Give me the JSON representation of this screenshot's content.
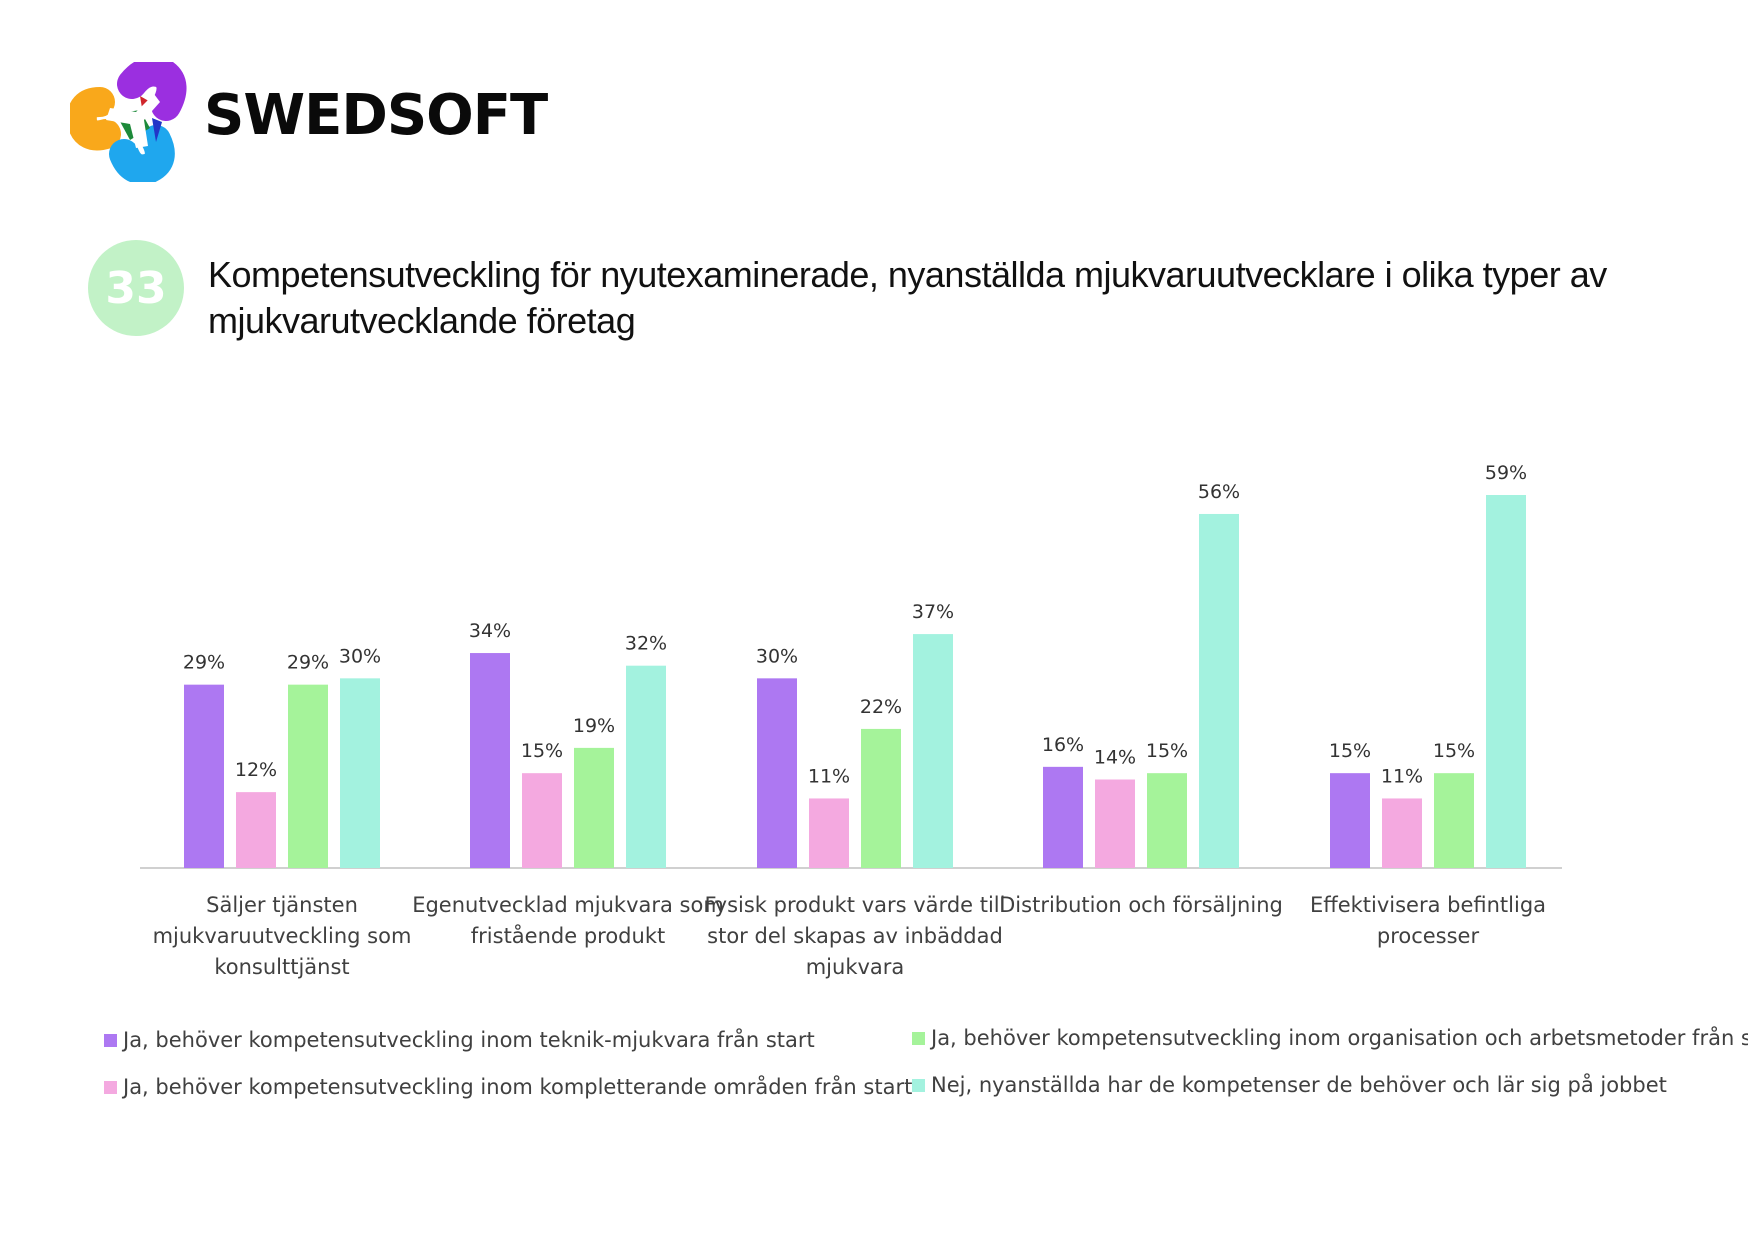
{
  "brand": {
    "name": "SWEDSOFT",
    "logo_icon": "swedsoft-logo-icon"
  },
  "figure": {
    "number": "33",
    "title": "Kompetensutveckling för nyutexaminerade, nyanställda mjukvaruutvecklare i olika typer av mjukvarutvecklande företag"
  },
  "chart_data": {
    "type": "bar",
    "categories": [
      "Säljer tjänsten mjukvaruutveckling som konsulttjänst",
      "Egenutvecklad mjukvara som fristående produkt",
      "Fysisk produkt vars värde till stor del skapas av inbäddad mjukvara",
      "Distribution och försäljning",
      "Effektivisera befintliga processer"
    ],
    "category_lines": [
      [
        "Säljer tjänsten",
        "mjukvaruutveckling som",
        "konsulttjänst"
      ],
      [
        "Egenutvecklad mjukvara som",
        "fristående produkt"
      ],
      [
        "Fysisk produkt vars värde till",
        "stor del skapas av inbäddad",
        "mjukvara"
      ],
      [
        "Distribution och försäljning"
      ],
      [
        "Effektivisera befintliga",
        "processer"
      ]
    ],
    "series": [
      {
        "name": "Ja, behöver kompetensutveckling inom teknik-mjukvara från start",
        "color": "#ad78f2",
        "values": [
          29,
          34,
          30,
          16,
          15
        ]
      },
      {
        "name": "Ja, behöver kompetensutveckling inom kompletterande områden från start",
        "color": "#f4a9e0",
        "values": [
          12,
          15,
          11,
          14,
          11
        ]
      },
      {
        "name": "Ja, behöver kompetensutveckling inom organisation och arbetsmetoder från start",
        "color": "#a5f39a",
        "values": [
          29,
          19,
          22,
          15,
          15
        ]
      },
      {
        "name": "Nej, nyanställda har de kompetenser de behöver och lär sig på jobbet",
        "color": "#a3f2df",
        "values": [
          30,
          32,
          37,
          56,
          59
        ]
      }
    ],
    "value_suffix": "%",
    "ylim": [
      0,
      60
    ],
    "grid": false,
    "legend_position": "bottom",
    "xlabel": "",
    "ylabel": ""
  }
}
